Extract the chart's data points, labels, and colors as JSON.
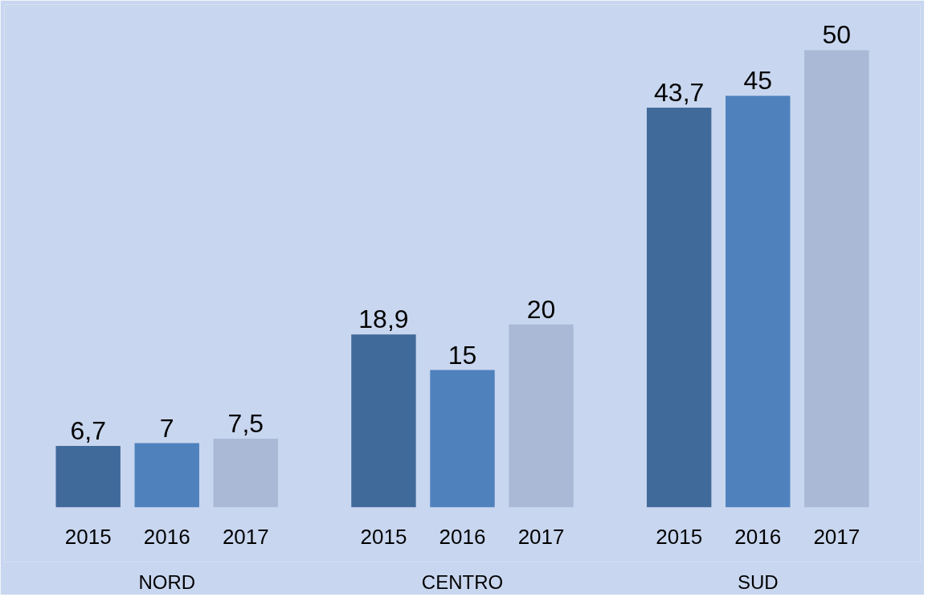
{
  "chart_data": {
    "type": "bar",
    "categories": [
      "NORD",
      "CENTRO",
      "SUD"
    ],
    "series": [
      {
        "name": "2015",
        "color": "#406a9a",
        "values": [
          6.7,
          18.9,
          43.7
        ],
        "value_labels": [
          "6,7",
          "18,9",
          "43,7"
        ]
      },
      {
        "name": "2016",
        "color": "#4f81bd",
        "values": [
          7,
          15,
          45
        ],
        "value_labels": [
          "7",
          "15",
          "45"
        ]
      },
      {
        "name": "2017",
        "color": "#aab9d6",
        "values": [
          7.5,
          20,
          50
        ],
        "value_labels": [
          "7,5",
          "20",
          "50"
        ]
      }
    ],
    "grid": false
  }
}
